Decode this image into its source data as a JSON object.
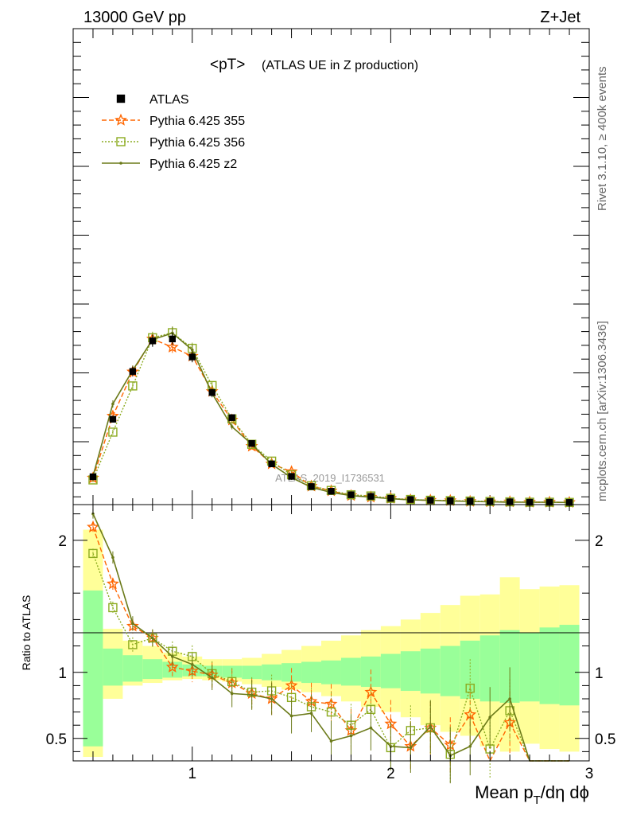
{
  "header": {
    "left": "13000 GeV pp",
    "right": "Z+Jet"
  },
  "side_labels": {
    "rivet": "Rivet 3.1.10, ≥ 400k events",
    "source": "mcplots.cern.ch [arXiv:1306.3436]"
  },
  "watermark": "ATLAS_2019_I1736531",
  "chart_data": {
    "type": "line",
    "title_main": "<pT>",
    "title_sub": "(ATLAS UE in Z production)",
    "xlabel": "Mean p_T/dη dϕ",
    "xlabel_parts": {
      "pre": "Mean p",
      "sub": "T",
      "post": "/dη dϕ"
    },
    "ratio_ylabel": "Ratio to ATLAS",
    "xlim": [
      0.4,
      3.0
    ],
    "x_tick_labels": [
      "1",
      "2",
      "3"
    ],
    "x_tick_values": [
      1,
      2,
      3
    ],
    "ratio_ylim": [
      0.33,
      2.27
    ],
    "ratio_tick_labels": [
      "0.5",
      "1",
      "2"
    ],
    "ratio_tick_values": [
      0.5,
      1,
      2
    ],
    "main_ylim": [
      0,
      1
    ],
    "legend_position": "top-left",
    "x": [
      0.5,
      0.6,
      0.7,
      0.8,
      0.9,
      1.0,
      1.1,
      1.2,
      1.3,
      1.4,
      1.5,
      1.6,
      1.7,
      1.8,
      1.9,
      2.0,
      2.1,
      2.2,
      2.3,
      2.4,
      2.5,
      2.6,
      2.7,
      2.8,
      2.9
    ],
    "series": [
      {
        "name": "ATLAS",
        "color": "#000000",
        "values": [
          0.067,
          0.214,
          0.336,
          0.414,
          0.419,
          0.373,
          0.282,
          0.218,
          0.152,
          0.1,
          0.068,
          0.042,
          0.03,
          0.021,
          0.017,
          0.012,
          0.009,
          0.007,
          0.006,
          0.005,
          0.004,
          0.003,
          0.002,
          0.002,
          0.0015
        ]
      },
      {
        "name": "Pythia 6.425 355",
        "color": "#ff6600",
        "values": [
          0.064,
          0.222,
          0.335,
          0.419,
          0.398,
          0.375,
          0.285,
          0.212,
          0.145,
          0.1,
          0.08,
          0.043,
          0.031,
          0.019,
          0.015,
          0.012,
          0.008,
          0.007,
          0.006,
          0.004,
          0.003,
          0.003,
          0.002,
          0.002,
          0.0015
        ],
        "ratio": [
          2.1,
          1.67,
          1.35,
          1.26,
          1.04,
          1.01,
          0.98,
          0.92,
          0.84,
          0.8,
          0.9,
          0.78,
          0.76,
          0.56,
          0.85,
          0.61,
          0.44,
          0.58,
          0.45,
          0.68,
          0.33,
          0.62,
          0.33,
          0.33,
          0.33
        ]
      },
      {
        "name": "Pythia 6.425 356",
        "color": "#8cab20",
        "values": [
          0.059,
          0.181,
          0.299,
          0.422,
          0.435,
          0.395,
          0.3,
          0.215,
          0.15,
          0.107,
          0.072,
          0.044,
          0.032,
          0.021,
          0.018,
          0.012,
          0.009,
          0.007,
          0.006,
          0.005,
          0.004,
          0.003,
          0.002,
          0.002,
          0.0015
        ],
        "ratio": [
          1.9,
          1.49,
          1.21,
          1.26,
          1.16,
          1.12,
          0.99,
          0.93,
          0.85,
          0.86,
          0.81,
          0.74,
          0.7,
          0.6,
          0.72,
          0.43,
          0.56,
          0.58,
          0.38,
          0.88,
          0.42,
          0.71,
          0.33,
          0.33,
          0.33
        ]
      },
      {
        "name": "Pythia 6.425 z2",
        "color": "#6b7a19",
        "values": [
          0.069,
          0.253,
          0.339,
          0.417,
          0.434,
          0.391,
          0.28,
          0.195,
          0.15,
          0.099,
          0.065,
          0.04,
          0.027,
          0.019,
          0.015,
          0.011,
          0.008,
          0.007,
          0.005,
          0.004,
          0.003,
          0.002,
          0.002,
          0.002,
          0.0015
        ],
        "ratio": [
          2.2,
          1.87,
          1.37,
          1.26,
          1.12,
          1.06,
          0.96,
          0.84,
          0.83,
          0.8,
          0.67,
          0.69,
          0.48,
          0.52,
          0.58,
          0.44,
          0.43,
          0.59,
          0.37,
          0.44,
          0.66,
          0.8,
          0.33,
          0.33,
          0.33
        ]
      }
    ],
    "ratio_bands": {
      "green_hi": [
        1.62,
        1.18,
        1.13,
        1.1,
        1.08,
        1.06,
        1.05,
        1.05,
        1.05,
        1.06,
        1.07,
        1.08,
        1.09,
        1.11,
        1.12,
        1.14,
        1.16,
        1.18,
        1.2,
        1.24,
        1.28,
        1.32,
        1.3,
        1.34,
        1.36
      ],
      "green_lo": [
        0.44,
        0.9,
        0.93,
        0.95,
        0.96,
        0.97,
        0.97,
        0.96,
        0.95,
        0.94,
        0.93,
        0.92,
        0.91,
        0.9,
        0.89,
        0.88,
        0.86,
        0.84,
        0.82,
        0.8,
        0.78,
        0.77,
        0.78,
        0.76,
        0.75
      ],
      "yellow_hi": [
        2.08,
        1.33,
        1.24,
        1.2,
        1.15,
        1.12,
        1.1,
        1.1,
        1.11,
        1.14,
        1.17,
        1.2,
        1.24,
        1.28,
        1.32,
        1.35,
        1.4,
        1.45,
        1.51,
        1.58,
        1.59,
        1.72,
        1.63,
        1.65,
        1.66
      ],
      "yellow_lo": [
        0.36,
        0.8,
        0.9,
        0.92,
        0.94,
        0.95,
        0.94,
        0.93,
        0.91,
        0.89,
        0.87,
        0.85,
        0.82,
        0.78,
        0.74,
        0.7,
        0.66,
        0.6,
        0.55,
        0.52,
        0.44,
        0.4,
        0.46,
        0.42,
        0.4
      ]
    },
    "colors": {
      "band_green": "#99ff99",
      "band_yellow": "#ffff99"
    }
  }
}
